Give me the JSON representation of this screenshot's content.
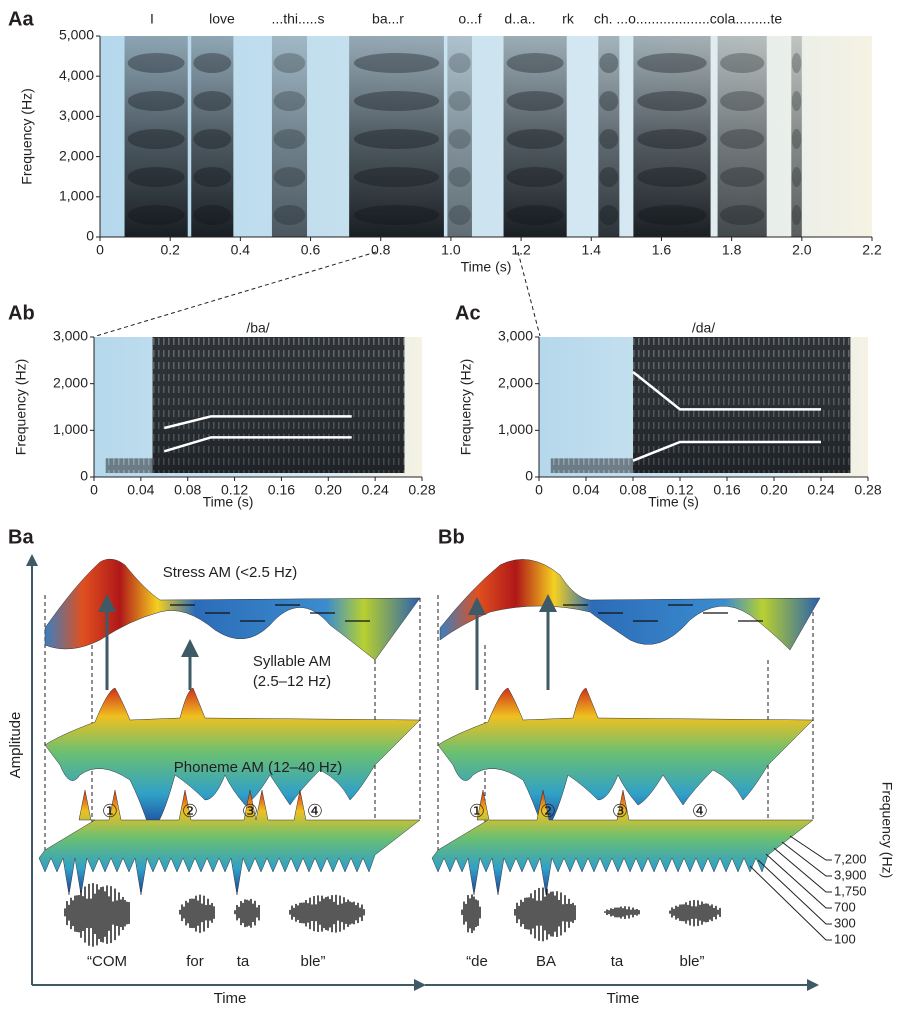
{
  "panels": {
    "Aa": {
      "label": "Aa",
      "xlabel": "Time (s)",
      "ylabel": "Frequency (Hz)",
      "words": [
        "I",
        "love",
        "...thi.....s",
        "ba...r",
        "o...f",
        "d..a..",
        "rk",
        "ch. ...o...................cola.........te"
      ],
      "xlim": [
        0,
        2.2
      ],
      "ylim": [
        0,
        5000
      ],
      "xticks": [
        0,
        0.2,
        0.4,
        0.6,
        0.8,
        {
          "value": 1,
          "label": "1.0"
        },
        1.2,
        1.4,
        1.6,
        1.8,
        {
          "value": 2,
          "label": "2.0"
        },
        2.2
      ],
      "yticks": [
        0,
        {
          "value": 1000,
          "label": "1,000"
        },
        {
          "value": 2000,
          "label": "2,000"
        },
        {
          "value": 3000,
          "label": "3,000"
        },
        {
          "value": 4000,
          "label": "4,000"
        },
        {
          "value": 5000,
          "label": "5,000"
        }
      ]
    },
    "Ab": {
      "label": "Ab",
      "title": "/ba/",
      "xlabel": "Time (s)",
      "ylabel": "Frequency (Hz)",
      "xlim": [
        0,
        0.28
      ],
      "ylim": [
        0,
        3000
      ],
      "xticks": [
        0,
        0.04,
        0.08,
        0.12,
        0.16,
        {
          "value": 0.2,
          "label": "0.20"
        },
        0.24,
        0.28
      ],
      "yticks": [
        0,
        {
          "value": 1000,
          "label": "1,000"
        },
        {
          "value": 2000,
          "label": "2,000"
        },
        {
          "value": 3000,
          "label": "3,000"
        }
      ],
      "formants": [
        {
          "x": [
            0.06,
            0.1,
            0.22
          ],
          "y": [
            550,
            850,
            850
          ]
        },
        {
          "x": [
            0.06,
            0.1,
            0.22
          ],
          "y": [
            1050,
            1300,
            1300
          ]
        }
      ]
    },
    "Ac": {
      "label": "Ac",
      "title": "/da/",
      "xlabel": "Time (s)",
      "ylabel": "Frequency (Hz)",
      "xlim": [
        0,
        0.28
      ],
      "ylim": [
        0,
        3000
      ],
      "xticks": [
        0,
        0.04,
        0.08,
        0.12,
        0.16,
        {
          "value": 0.2,
          "label": "0.20"
        },
        0.24,
        0.28
      ],
      "yticks": [
        0,
        {
          "value": 1000,
          "label": "1,000"
        },
        {
          "value": 2000,
          "label": "2,000"
        },
        {
          "value": 3000,
          "label": "3,000"
        }
      ],
      "formants": [
        {
          "x": [
            0.08,
            0.12,
            0.24
          ],
          "y": [
            350,
            750,
            750
          ]
        },
        {
          "x": [
            0.08,
            0.12,
            0.24
          ],
          "y": [
            2250,
            1450,
            1450
          ]
        }
      ]
    }
  },
  "B": {
    "amplitude_label": "Amplitude",
    "Ba": {
      "label": "Ba",
      "stress": "Stress AM (<2.5 Hz)",
      "syllable_1": "Syllable AM",
      "syllable_2": "(2.5–12 Hz)",
      "phoneme": "Phoneme AM (12–40 Hz)",
      "numbers": [
        "①",
        "②",
        "③",
        "④"
      ],
      "words": [
        "“COM",
        "for",
        "ta",
        "ble”"
      ],
      "time_label": "Time"
    },
    "Bb": {
      "label": "Bb",
      "numbers": [
        "①",
        "②",
        "③",
        "④"
      ],
      "words": [
        "“de",
        "BA",
        "ta",
        "ble”"
      ],
      "time_label": "Time",
      "frequency_label": "Frequency (Hz)",
      "frequency_ticks": [
        "7,200",
        "3,900",
        "1,750",
        "700",
        "300",
        "100"
      ]
    }
  }
}
